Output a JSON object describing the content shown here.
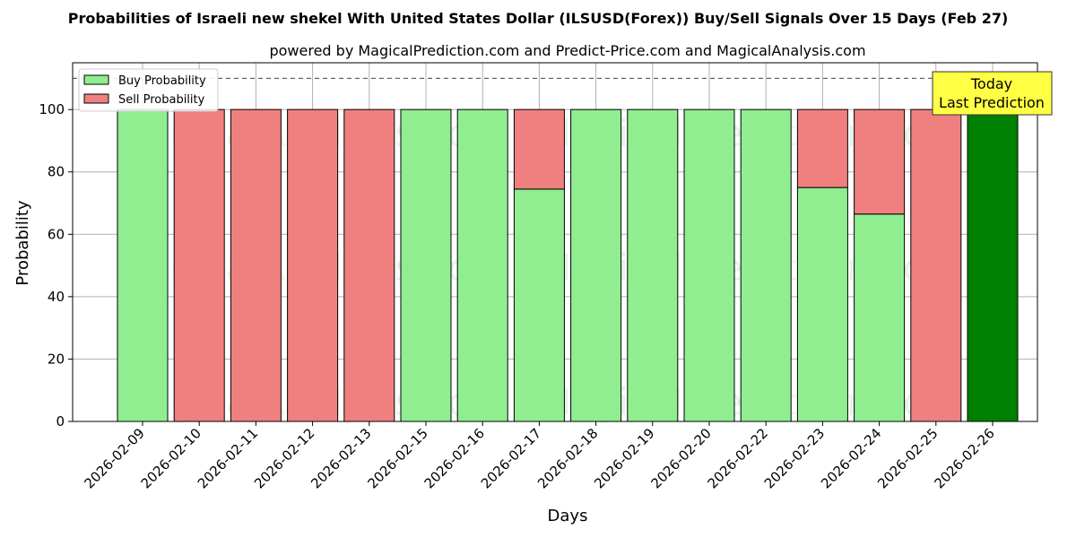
{
  "chart_data": {
    "type": "bar",
    "title": "Probabilities of Israeli new shekel With United States Dollar (ILSUSD(Forex)) Buy/Sell Signals Over 15 Days (Feb 27)",
    "subtitle": "powered by MagicalPrediction.com and Predict-Price.com and MagicalAnalysis.com",
    "xlabel": "Days",
    "ylabel": "Probability",
    "ylim": [
      0,
      115
    ],
    "yticks": [
      0,
      20,
      40,
      60,
      80,
      100
    ],
    "reference_line": 110,
    "grid": true,
    "legend_position": "top-left",
    "categories": [
      "2026-02-09",
      "2026-02-10",
      "2026-02-11",
      "2026-02-12",
      "2026-02-13",
      "2026-02-15",
      "2026-02-16",
      "2026-02-17",
      "2026-02-18",
      "2026-02-19",
      "2026-02-20",
      "2026-02-22",
      "2026-02-23",
      "2026-02-24",
      "2026-02-25",
      "2026-02-26"
    ],
    "series": [
      {
        "name": "Buy Probability",
        "color": "#90ee90",
        "values": [
          100,
          0,
          0,
          0,
          0,
          100,
          100,
          74.5,
          100,
          100,
          100,
          100,
          75,
          66.5,
          0,
          100
        ]
      },
      {
        "name": "Sell Probability",
        "color": "#f08080",
        "values": [
          0,
          100,
          100,
          100,
          100,
          0,
          0,
          25.5,
          0,
          0,
          0,
          0,
          25,
          33.5,
          100,
          0
        ]
      }
    ],
    "highlight": {
      "index": 15,
      "color": "#008000",
      "label_line1": "Today",
      "label_line2": "Last Prediction",
      "box_color": "#ffff44"
    },
    "watermarks": [
      "MagicalAnalysis.com",
      "MagicalPrediction.com"
    ]
  }
}
